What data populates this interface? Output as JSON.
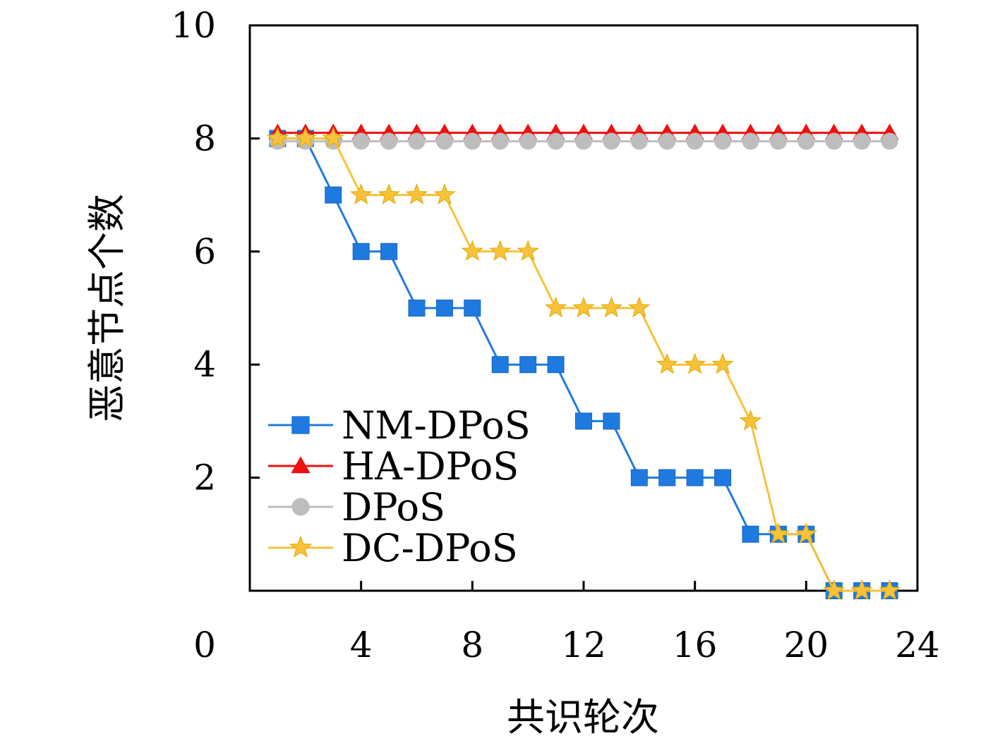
{
  "chart_data": {
    "type": "line",
    "title": "",
    "xlabel": "共识轮次",
    "ylabel": "恶意节点个数",
    "xlim": [
      0,
      24
    ],
    "ylim": [
      0,
      10
    ],
    "x_ticks": [
      0,
      4,
      8,
      12,
      16,
      20,
      24
    ],
    "y_ticks": [
      10,
      8,
      6,
      4,
      2
    ],
    "grid": false,
    "legend_position": "bottom-left",
    "x": [
      1,
      2,
      3,
      4,
      5,
      6,
      7,
      8,
      9,
      10,
      11,
      12,
      13,
      14,
      15,
      16,
      17,
      18,
      19,
      20,
      21,
      22,
      23
    ],
    "series": [
      {
        "name": "NM-DPoS",
        "color": "#1f7ae0",
        "marker": "square",
        "values": [
          8,
          8,
          7,
          6,
          6,
          5,
          5,
          5,
          4,
          4,
          4,
          3,
          3,
          2,
          2,
          2,
          2,
          1,
          1,
          1,
          0,
          0,
          0
        ]
      },
      {
        "name": "HA-DPoS",
        "color": "#f00f0f",
        "marker": "triangle",
        "values": [
          8.1,
          8.1,
          8.1,
          8.1,
          8.1,
          8.1,
          8.1,
          8.1,
          8.1,
          8.1,
          8.1,
          8.1,
          8.1,
          8.1,
          8.1,
          8.1,
          8.1,
          8.1,
          8.1,
          8.1,
          8.1,
          8.1,
          8.1
        ]
      },
      {
        "name": "DPoS",
        "color": "#bdbdbd",
        "marker": "circle",
        "values": [
          7.95,
          7.95,
          7.95,
          7.95,
          7.95,
          7.95,
          7.95,
          7.95,
          7.95,
          7.95,
          7.95,
          7.95,
          7.95,
          7.95,
          7.95,
          7.95,
          7.95,
          7.95,
          7.95,
          7.95,
          7.95,
          7.95,
          7.95
        ]
      },
      {
        "name": "DC-DPoS",
        "color": "#f7c23a",
        "marker": "star",
        "values": [
          8,
          8,
          8,
          7,
          7,
          7,
          7,
          6,
          6,
          6,
          5,
          5,
          5,
          5,
          4,
          4,
          4,
          3,
          1,
          1,
          0,
          0,
          0
        ]
      }
    ]
  }
}
